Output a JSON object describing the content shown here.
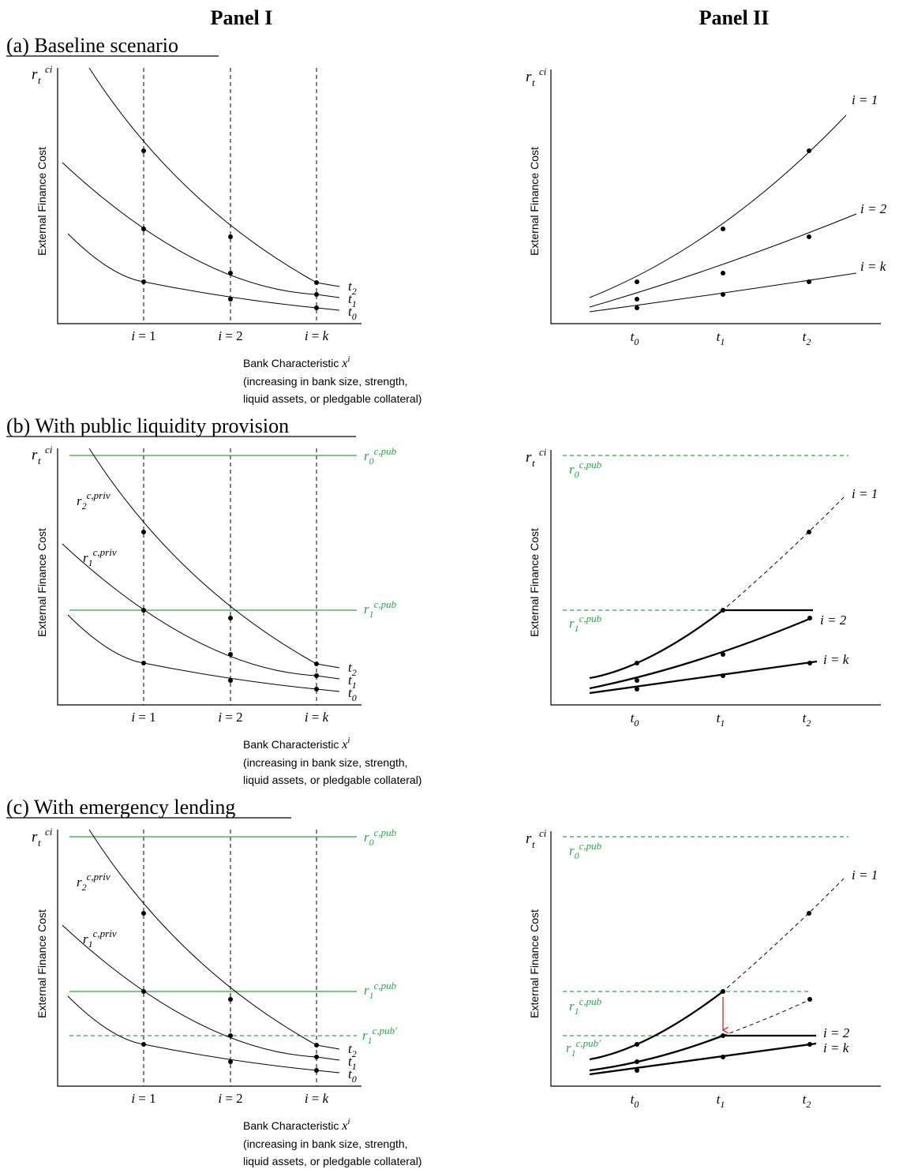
{
  "panel_titles": [
    "Panel I",
    "Panel II"
  ],
  "ylabel": "External Finance Cost",
  "y_symbol": "r",
  "y_symbol_sub": "t",
  "y_symbol_sup": "ci",
  "p1": {
    "ticks": [
      {
        "sym": "i",
        "op": "=",
        "val": "1"
      },
      {
        "sym": "i",
        "op": "=",
        "val": "2"
      },
      {
        "sym": "i",
        "op": "=",
        "val": "k"
      }
    ],
    "xlabel": "Bank Characteristic",
    "xvar": "x",
    "xvar_sup": "i",
    "xnote_1": "(increasing in bank size, strength,",
    "xnote_2": "liquid assets, or pledgable collateral)",
    "curve_labels": [
      {
        "sym": "t",
        "sub": "2"
      },
      {
        "sym": "t",
        "sub": "1"
      },
      {
        "sym": "t",
        "sub": "0"
      }
    ],
    "priv_labels": [
      {
        "sym": "r",
        "sub": "2",
        "sup": "c,priv"
      },
      {
        "sym": "r",
        "sub": "1",
        "sup": "c,priv"
      }
    ]
  },
  "p2": {
    "ticks": [
      {
        "sym": "t",
        "sub": "0"
      },
      {
        "sym": "t",
        "sub": "1"
      },
      {
        "sym": "t",
        "sub": "2"
      }
    ],
    "curve_labels": [
      "i = 1",
      "i = 2",
      "i = k"
    ]
  },
  "pub_labels": {
    "r0": {
      "sym": "r",
      "sub": "0",
      "sup": "c,pub"
    },
    "r1": {
      "sym": "r",
      "sub": "1",
      "sup": "c,pub"
    },
    "r1p": {
      "sym": "r",
      "sub": "1",
      "sup": "c,pub′"
    }
  },
  "rows": [
    {
      "title": "(a) Baseline scenario"
    },
    {
      "title": "(b) With public liquidity provision"
    },
    {
      "title": "(c) With emergency lending"
    }
  ],
  "colors": {
    "ink": "#000000",
    "green": "#2aa84a",
    "red": "#d62020"
  }
}
